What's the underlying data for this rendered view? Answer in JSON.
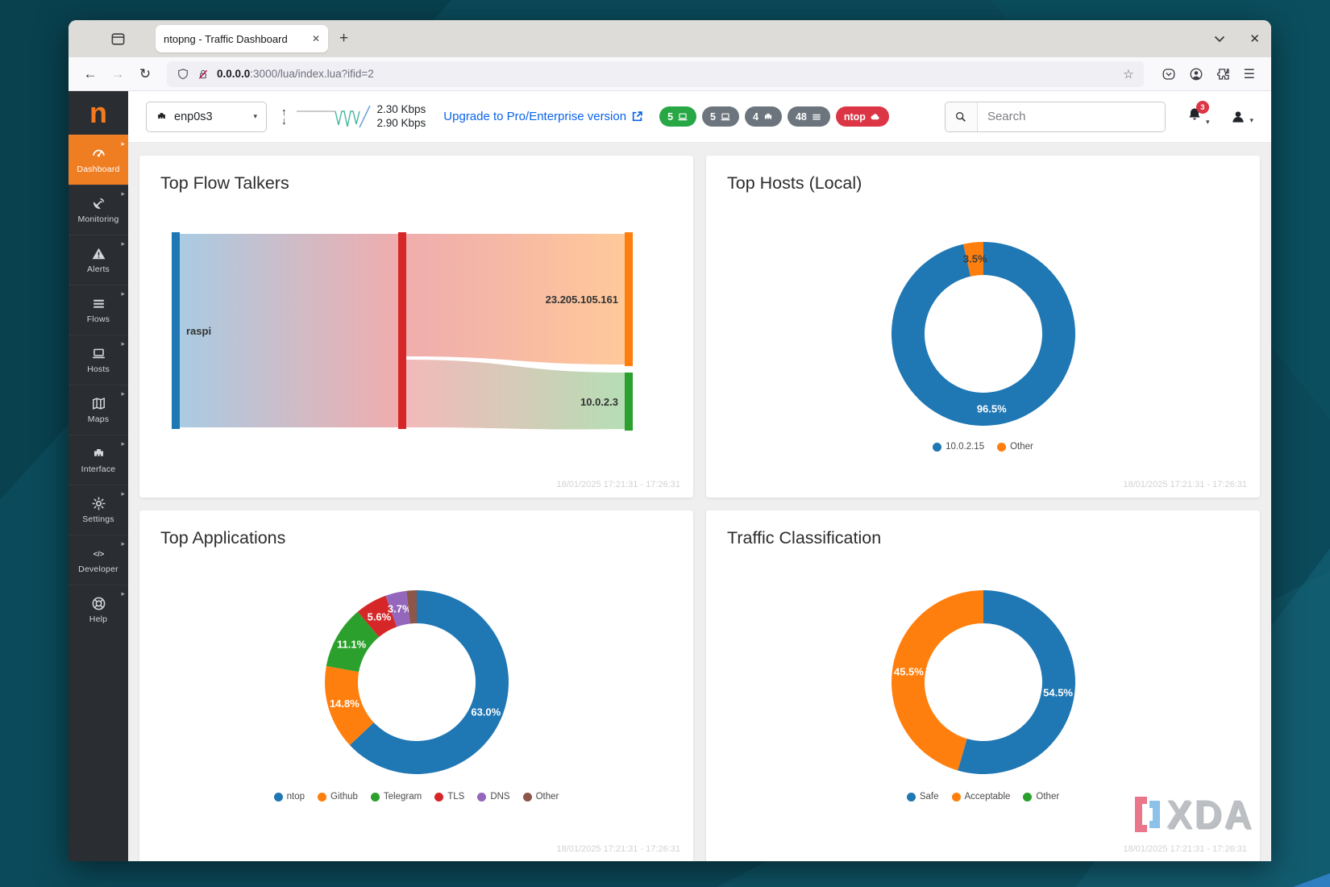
{
  "browser": {
    "tab_title": "ntopng - Traffic Dashboard",
    "url_host": "0.0.0.0",
    "url_rest": ":3000/lua/index.lua?ifid=2"
  },
  "topnav": {
    "interface_name": "enp0s3",
    "rate_up": "2.30 Kbps",
    "rate_down": "2.90 Kbps",
    "upgrade_label": "Upgrade to Pro/Enterprise version",
    "search_placeholder": "Search",
    "notification_count": "3",
    "badges": [
      {
        "text": "5",
        "color": "#28a745",
        "icon": "laptop-icon"
      },
      {
        "text": "5",
        "color": "#6c757d",
        "icon": "laptop-icon"
      },
      {
        "text": "4",
        "color": "#6c757d",
        "icon": "ethernet-icon"
      },
      {
        "text": "48",
        "color": "#6c757d",
        "icon": "list-icon"
      },
      {
        "text": "ntop",
        "color": "#dc3545",
        "icon": "cloud-icon"
      }
    ]
  },
  "sidebar": {
    "logo": "n",
    "items": [
      {
        "label": "Dashboard",
        "icon": "gauge-icon",
        "active": true
      },
      {
        "label": "Monitoring",
        "icon": "satellite-dish-icon",
        "active": false
      },
      {
        "label": "Alerts",
        "icon": "alert-triangle-icon",
        "active": false
      },
      {
        "label": "Flows",
        "icon": "flows-bars-icon",
        "active": false
      },
      {
        "label": "Hosts",
        "icon": "laptop-icon",
        "active": false
      },
      {
        "label": "Maps",
        "icon": "map-icon",
        "active": false
      },
      {
        "label": "Interface",
        "icon": "ethernet-icon",
        "active": false
      },
      {
        "label": "Settings",
        "icon": "gear-icon",
        "active": false
      },
      {
        "label": "Developer",
        "icon": "code-icon",
        "active": false
      },
      {
        "label": "Help",
        "icon": "life-ring-icon",
        "active": false
      }
    ]
  },
  "cards": {
    "flow_talkers": {
      "title": "Top Flow Talkers",
      "timestamp": "18/01/2025 17:21:31 - 17:26:31"
    },
    "top_hosts": {
      "title": "Top Hosts (Local)",
      "timestamp": "18/01/2025 17:21:31 - 17:26:31"
    },
    "top_applications": {
      "title": "Top Applications",
      "timestamp": "18/01/2025 17:21:31 - 17:26:31"
    },
    "traffic_classification": {
      "title": "Traffic Classification",
      "timestamp": "18/01/2025 17:21:31 - 17:26:31"
    }
  },
  "watermark": "XDA",
  "chart_data": [
    {
      "type": "sankey",
      "card": "flow_talkers",
      "title": "Top Flow Talkers",
      "nodes": [
        {
          "name": "raspi",
          "color": "#1f77b4",
          "height_frac": 1.0
        },
        {
          "name": "",
          "color": "#d62728",
          "height_frac": 1.0
        },
        {
          "name": "23.205.105.161",
          "color": "#ff7f0e",
          "height_frac": 0.68
        },
        {
          "name": "10.0.2.3",
          "color": "#2ca02c",
          "height_frac": 0.3
        }
      ],
      "links": [
        {
          "source": "raspi",
          "target": "center-node",
          "weight": 1.0
        },
        {
          "source": "center-node",
          "target": "23.205.105.161",
          "weight": 0.68
        },
        {
          "source": "center-node",
          "target": "10.0.2.3",
          "weight": 0.3
        }
      ]
    },
    {
      "type": "donut",
      "card": "top_hosts",
      "title": "Top Hosts (Local)",
      "min_label_pct": 3,
      "slices": [
        {
          "label": "10.0.2.15",
          "value": 96.5,
          "color": "#1f77b4",
          "label_color": "#ffffff"
        },
        {
          "label": "Other",
          "value": 3.5,
          "color": "#ff7f0e",
          "label_color": "#3d3d3d"
        }
      ]
    },
    {
      "type": "donut",
      "card": "top_applications",
      "title": "Top Applications",
      "min_label_pct": 3,
      "slices": [
        {
          "label": "ntop",
          "value": 63.0,
          "color": "#1f77b4",
          "label_color": "#ffffff"
        },
        {
          "label": "Github",
          "value": 14.8,
          "color": "#ff7f0e",
          "label_color": "#ffffff"
        },
        {
          "label": "Telegram",
          "value": 11.1,
          "color": "#2ca02c",
          "label_color": "#ffffff"
        },
        {
          "label": "TLS",
          "value": 5.6,
          "color": "#d62728",
          "label_color": "#ffffff"
        },
        {
          "label": "DNS",
          "value": 3.7,
          "color": "#9467bd",
          "label_color": "#ffffff"
        },
        {
          "label": "Other",
          "value": 1.8,
          "color": "#8c564b",
          "label_color": "#ffffff"
        }
      ]
    },
    {
      "type": "donut",
      "card": "traffic_classification",
      "title": "Traffic Classification",
      "min_label_pct": 3,
      "slices": [
        {
          "label": "Safe",
          "value": 54.5,
          "color": "#1f77b4",
          "label_color": "#ffffff"
        },
        {
          "label": "Acceptable",
          "value": 45.5,
          "color": "#ff7f0e",
          "label_color": "#ffffff"
        },
        {
          "label": "Other",
          "value": 0,
          "color": "#2ca02c",
          "label_color": "#ffffff"
        }
      ]
    }
  ]
}
